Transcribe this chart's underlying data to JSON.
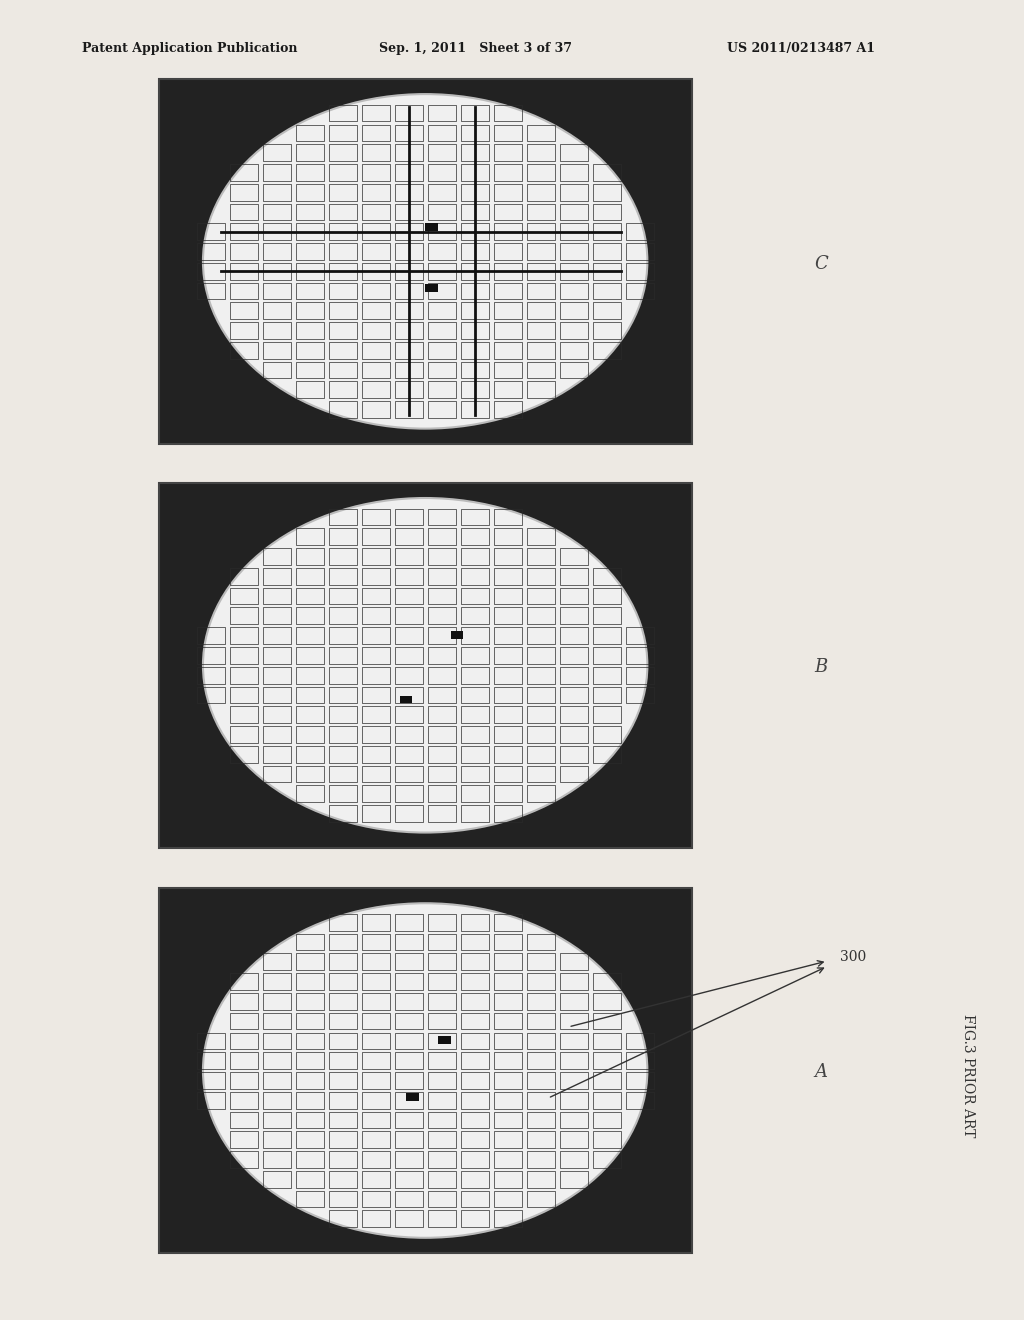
{
  "title": "FIG.3 PRIOR ART",
  "header_left": "Patent Application Publication",
  "header_mid": "Sep. 1, 2011   Sheet 3 of 37",
  "header_right": "US 2011/0213487 A1",
  "panels": [
    "A",
    "B",
    "C"
  ],
  "label_300": "300",
  "bg_color": "#ede9e3",
  "dark_bg": "#222222",
  "wafer_color": "#f0f0f0",
  "grid_color": "#2a2a2a",
  "mark_color": "#111111"
}
